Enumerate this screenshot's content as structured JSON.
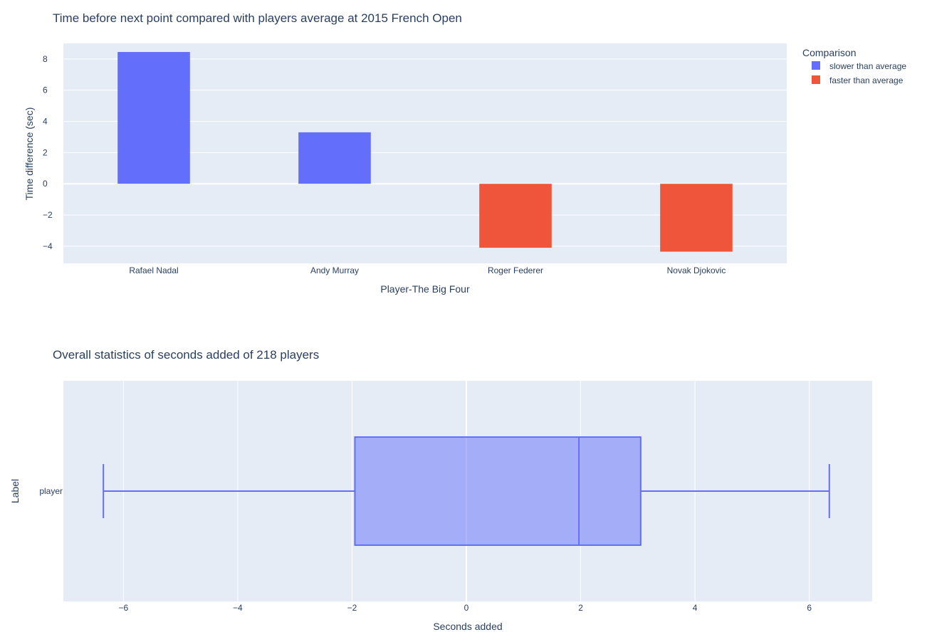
{
  "chart_data": [
    {
      "type": "bar",
      "title": "Time before next point compared with players average at 2015 French Open",
      "xlabel": "Player-The Big Four",
      "ylabel": "Time difference (sec)",
      "categories": [
        "Rafael Nadal",
        "Andy Murray",
        "Roger Federer",
        "Novak Djokovic"
      ],
      "series": [
        {
          "name": "slower than average",
          "color": "#636efa",
          "values": [
            8.45,
            3.3,
            null,
            null
          ]
        },
        {
          "name": "faster than average",
          "color": "#ef553b",
          "values": [
            null,
            null,
            -4.1,
            -4.35
          ]
        }
      ],
      "ylim": [
        -5.1,
        9.0
      ],
      "yticks": [
        -4,
        -2,
        0,
        2,
        4,
        6,
        8
      ],
      "ytick_labels": [
        "−4",
        "−2",
        "0",
        "2",
        "4",
        "6",
        "8"
      ],
      "legend": {
        "title": "Comparison",
        "position": "top-right"
      },
      "grid": true
    },
    {
      "type": "box",
      "title": "Overall statistics of seconds added of 218 players",
      "xlabel": "Seconds added",
      "ylabel": "Label",
      "category": "player",
      "color": "#636efa",
      "stats": {
        "min": -6.35,
        "q1": -1.95,
        "median": 1.97,
        "q3": 3.05,
        "max": 6.35
      },
      "xlim": [
        -7.05,
        7.1
      ],
      "xticks": [
        -6,
        -4,
        -2,
        0,
        2,
        4,
        6
      ],
      "xtick_labels": [
        "−6",
        "−4",
        "−2",
        "0",
        "2",
        "4",
        "6"
      ],
      "grid": true
    }
  ]
}
